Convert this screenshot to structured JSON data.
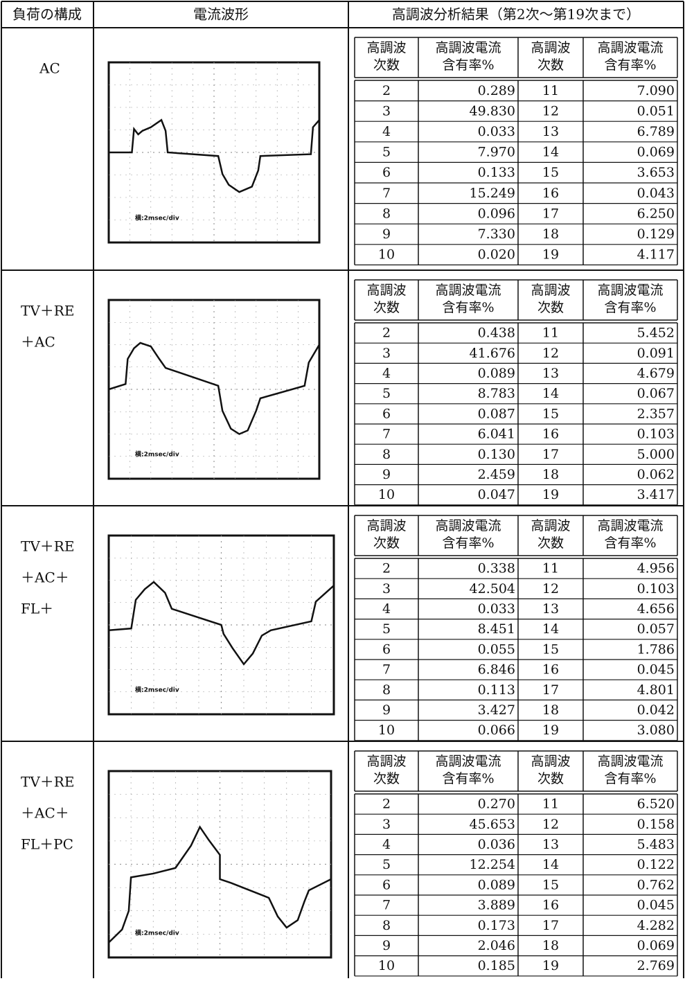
{
  "header": [
    "負荷の構成",
    "電流波形",
    "高調波分析結果（第2次～第19次まで）"
  ],
  "rows": [
    {
      "load": [
        "AC"
      ],
      "scale_label": "横:2msec/div",
      "table": {
        "columns": [
          [
            "高調波",
            "次数"
          ],
          [
            "高調波電流",
            "含有率%"
          ],
          [
            "高調波",
            "次数"
          ],
          [
            "高調波電流",
            "含有率%"
          ]
        ],
        "rows": [
          [
            "2",
            "0.289",
            "11",
            "7.090"
          ],
          [
            "3",
            "49.830",
            "12",
            "0.051"
          ],
          [
            "4",
            "0.033",
            "13",
            "6.789"
          ],
          [
            "5",
            "7.970",
            "14",
            "0.069"
          ],
          [
            "6",
            "0.133",
            "15",
            "3.653"
          ],
          [
            "7",
            "15.249",
            "16",
            "0.043"
          ],
          [
            "8",
            "0.096",
            "17",
            "6.250"
          ],
          [
            "9",
            "7.330",
            "18",
            "0.129"
          ],
          [
            "10",
            "0.020",
            "19",
            "4.117"
          ]
        ]
      }
    },
    {
      "load": [
        "TV＋RE",
        "＋AC"
      ],
      "scale_label": "横:2msec/div",
      "table": {
        "columns": [
          [
            "高調波",
            "次数"
          ],
          [
            "高調波電流",
            "含有率%"
          ],
          [
            "高調波",
            "次数"
          ],
          [
            "高調波電流",
            "含有率%"
          ]
        ],
        "rows": [
          [
            "2",
            "0.438",
            "11",
            "5.452"
          ],
          [
            "3",
            "41.676",
            "12",
            "0.091"
          ],
          [
            "4",
            "0.089",
            "13",
            "4.679"
          ],
          [
            "5",
            "8.783",
            "14",
            "0.067"
          ],
          [
            "6",
            "0.087",
            "15",
            "2.357"
          ],
          [
            "7",
            "6.041",
            "16",
            "0.103"
          ],
          [
            "8",
            "0.130",
            "17",
            "5.000"
          ],
          [
            "9",
            "2.459",
            "18",
            "0.062"
          ],
          [
            "10",
            "0.047",
            "19",
            "3.417"
          ]
        ]
      }
    },
    {
      "load": [
        "TV＋RE",
        "＋AC＋",
        "FL＋"
      ],
      "scale_label": "横:2msec/div",
      "table": {
        "columns": [
          [
            "高調波",
            "次数"
          ],
          [
            "高調波電流",
            "含有率%"
          ],
          [
            "高調波",
            "次数"
          ],
          [
            "高調波電流",
            "含有率%"
          ]
        ],
        "rows": [
          [
            "2",
            "0.338",
            "11",
            "4.956"
          ],
          [
            "3",
            "42.504",
            "12",
            "0.103"
          ],
          [
            "4",
            "0.033",
            "13",
            "4.656"
          ],
          [
            "5",
            "8.451",
            "14",
            "0.057"
          ],
          [
            "6",
            "0.055",
            "15",
            "1.786"
          ],
          [
            "7",
            "6.846",
            "16",
            "0.045"
          ],
          [
            "8",
            "0.113",
            "17",
            "4.801"
          ],
          [
            "9",
            "3.427",
            "18",
            "0.042"
          ],
          [
            "10",
            "0.066",
            "19",
            "3.080"
          ]
        ]
      }
    },
    {
      "load": [
        "TV＋RE",
        "＋AC＋",
        "FL＋PC"
      ],
      "scale_label": "横:2msec/div",
      "table": {
        "columns": [
          [
            "高調波",
            "次数"
          ],
          [
            "高調波電流",
            "含有率%"
          ],
          [
            "高調波",
            "次数"
          ],
          [
            "高調波電流",
            "含有率%"
          ]
        ],
        "rows": [
          [
            "2",
            "0.270",
            "11",
            "6.520"
          ],
          [
            "3",
            "45.653",
            "12",
            "0.158"
          ],
          [
            "4",
            "0.036",
            "13",
            "5.483"
          ],
          [
            "5",
            "12.254",
            "14",
            "0.122"
          ],
          [
            "6",
            "0.089",
            "15",
            "0.762"
          ],
          [
            "7",
            "3.889",
            "16",
            "0.045"
          ],
          [
            "8",
            "0.173",
            "17",
            "4.282"
          ],
          [
            "9",
            "2.046",
            "18",
            "0.069"
          ],
          [
            "10",
            "0.185",
            "19",
            "2.769"
          ]
        ]
      }
    }
  ]
}
